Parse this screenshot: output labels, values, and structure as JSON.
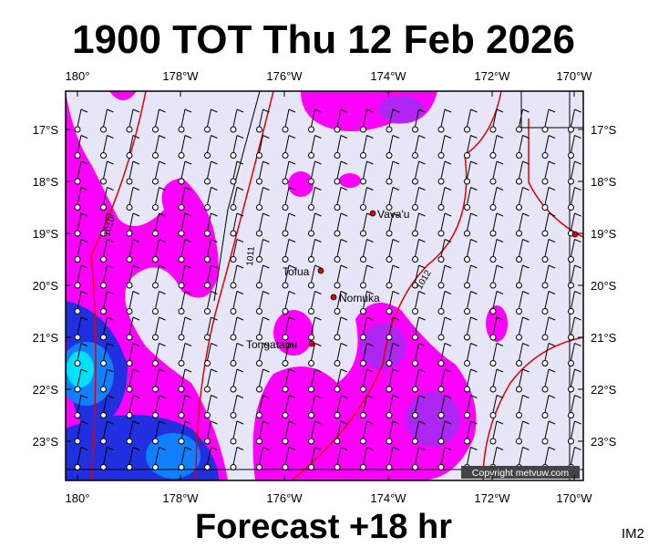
{
  "title": "1900 TOT Thu 12 Feb 2026",
  "footer": "Forecast +18 hr",
  "corner_label": "IM2",
  "copyright": "Copyright metvuw.com",
  "map": {
    "longitude_labels": [
      "180°",
      "178°W",
      "176°W",
      "174°W",
      "172°W",
      "170°W"
    ],
    "latitude_labels": [
      "17°S",
      "18°S",
      "19°S",
      "20°S",
      "21°S",
      "22°S",
      "23°S"
    ],
    "places": [
      "Vava'u",
      "Tofua",
      "Nomuka",
      "Tongatapu"
    ],
    "isobar_labels": [
      "1010",
      "1011",
      "1012"
    ]
  }
}
